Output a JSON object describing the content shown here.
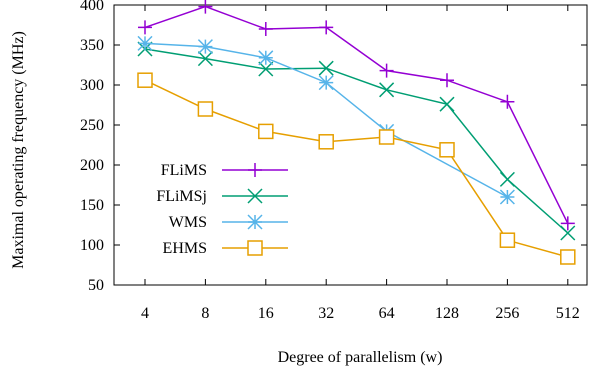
{
  "chart_data": {
    "type": "line",
    "title": "",
    "xlabel": "Degree of parallelism (w)",
    "ylabel": "Maximal operating frequency (MHz)",
    "categories": [
      "4",
      "8",
      "16",
      "32",
      "64",
      "128",
      "256",
      "512"
    ],
    "ylim": [
      50,
      400
    ],
    "yticks": [
      50,
      100,
      150,
      200,
      250,
      300,
      350,
      400
    ],
    "grid": false,
    "legend_position": "left-middle",
    "series": [
      {
        "name": "FLiMS",
        "marker": "plus",
        "color": "#9400d3",
        "values": [
          372,
          398,
          370,
          372,
          318,
          306,
          279,
          127
        ]
      },
      {
        "name": "FLiMSj",
        "marker": "cross",
        "color": "#009e73",
        "values": [
          345,
          333,
          320,
          321,
          294,
          276,
          182,
          115
        ]
      },
      {
        "name": "WMS",
        "marker": "star",
        "color": "#56b4e9",
        "values": [
          352,
          348,
          334,
          303,
          242,
          null,
          160,
          null
        ]
      },
      {
        "name": "EHMS",
        "marker": "square",
        "color": "#e69f00",
        "values": [
          306,
          270,
          242,
          229,
          235,
          219,
          106,
          85
        ]
      }
    ]
  }
}
